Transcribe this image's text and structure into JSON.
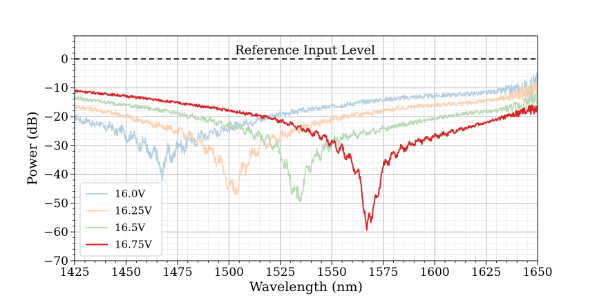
{
  "chart_data": {
    "type": "line",
    "xlabel": "Wavelength (nm)",
    "ylabel": "Power (dB)",
    "xlim": [
      1425,
      1650
    ],
    "ylim": [
      -70,
      8
    ],
    "x_ticks": [
      1425,
      1450,
      1475,
      1500,
      1525,
      1550,
      1575,
      1600,
      1625,
      1650
    ],
    "y_ticks": [
      0,
      -10,
      -20,
      -30,
      -40,
      -50,
      -60,
      -70
    ],
    "grid": "major and minor",
    "legend_position": "lower-left",
    "reference_line": {
      "y": 0,
      "style": "dashed",
      "color": "#000000",
      "label": "Reference Input Level"
    },
    "series": [
      {
        "name": "16.0V",
        "color": "#aecde3",
        "opacity": 0.95,
        "noise": 1.6,
        "ripple_amp": 2.6,
        "ripple_period": 5.5,
        "points": [
          [
            1425,
            -20.5
          ],
          [
            1430,
            -21.5
          ],
          [
            1435,
            -22.5
          ],
          [
            1440,
            -23.5
          ],
          [
            1445,
            -24.5
          ],
          [
            1450,
            -26
          ],
          [
            1455,
            -28
          ],
          [
            1460,
            -31
          ],
          [
            1463,
            -33
          ],
          [
            1466,
            -36
          ],
          [
            1468,
            -38
          ],
          [
            1470,
            -34
          ],
          [
            1475,
            -31
          ],
          [
            1480,
            -29
          ],
          [
            1485,
            -27.5
          ],
          [
            1490,
            -26
          ],
          [
            1500,
            -24
          ],
          [
            1510,
            -22
          ],
          [
            1520,
            -20
          ],
          [
            1530,
            -18.5
          ],
          [
            1540,
            -17.5
          ],
          [
            1550,
            -16.5
          ],
          [
            1560,
            -15.5
          ],
          [
            1570,
            -14.5
          ],
          [
            1580,
            -13.8
          ],
          [
            1590,
            -13.2
          ],
          [
            1600,
            -12.8
          ],
          [
            1610,
            -12.4
          ],
          [
            1620,
            -12
          ],
          [
            1630,
            -11.3
          ],
          [
            1640,
            -10.5
          ],
          [
            1645,
            -10
          ],
          [
            1650,
            -8
          ]
        ]
      },
      {
        "name": "16.25V",
        "color": "#fdd0ac",
        "opacity": 0.95,
        "noise": 1.4,
        "ripple_amp": 2.8,
        "ripple_period": 5.0,
        "points": [
          [
            1425,
            -16.5
          ],
          [
            1435,
            -17.5
          ],
          [
            1445,
            -19
          ],
          [
            1455,
            -21
          ],
          [
            1465,
            -23
          ],
          [
            1475,
            -25
          ],
          [
            1480,
            -26.5
          ],
          [
            1485,
            -28.5
          ],
          [
            1490,
            -31
          ],
          [
            1494,
            -34
          ],
          [
            1497,
            -38
          ],
          [
            1500,
            -43
          ],
          [
            1502,
            -46
          ],
          [
            1505,
            -42
          ],
          [
            1508,
            -37
          ],
          [
            1512,
            -33
          ],
          [
            1516,
            -30
          ],
          [
            1520,
            -28.5
          ],
          [
            1525,
            -27
          ],
          [
            1530,
            -25.5
          ],
          [
            1540,
            -23
          ],
          [
            1550,
            -21
          ],
          [
            1560,
            -19.5
          ],
          [
            1570,
            -18.5
          ],
          [
            1580,
            -17.5
          ],
          [
            1590,
            -16.5
          ],
          [
            1600,
            -16
          ],
          [
            1610,
            -15.5
          ],
          [
            1620,
            -15
          ],
          [
            1630,
            -14
          ],
          [
            1640,
            -12.5
          ],
          [
            1645,
            -11.5
          ],
          [
            1650,
            -9
          ]
        ]
      },
      {
        "name": "16.5V",
        "color": "#b2d8ae",
        "opacity": 0.95,
        "noise": 1.3,
        "ripple_amp": 2.6,
        "ripple_period": 4.6,
        "points": [
          [
            1425,
            -13.5
          ],
          [
            1435,
            -14.5
          ],
          [
            1445,
            -15.5
          ],
          [
            1455,
            -16.5
          ],
          [
            1465,
            -17.5
          ],
          [
            1475,
            -19
          ],
          [
            1485,
            -20.5
          ],
          [
            1495,
            -22
          ],
          [
            1505,
            -24
          ],
          [
            1512,
            -26
          ],
          [
            1518,
            -28
          ],
          [
            1522,
            -30
          ],
          [
            1525,
            -33
          ],
          [
            1528,
            -38
          ],
          [
            1531,
            -44
          ],
          [
            1533,
            -49
          ],
          [
            1535,
            -46
          ],
          [
            1537,
            -41
          ],
          [
            1540,
            -36
          ],
          [
            1545,
            -32
          ],
          [
            1550,
            -29
          ],
          [
            1555,
            -27.5
          ],
          [
            1560,
            -26.5
          ],
          [
            1570,
            -25
          ],
          [
            1580,
            -23.5
          ],
          [
            1590,
            -22
          ],
          [
            1600,
            -20.5
          ],
          [
            1610,
            -19.5
          ],
          [
            1620,
            -18.5
          ],
          [
            1630,
            -18
          ],
          [
            1640,
            -16.5
          ],
          [
            1645,
            -15
          ],
          [
            1650,
            -13
          ]
        ]
      },
      {
        "name": "16.75V",
        "color": "#d62728",
        "opacity": 1.0,
        "noise": 0.8,
        "ripple_amp": 2.4,
        "ripple_period": 4.1,
        "points": [
          [
            1425,
            -11
          ],
          [
            1435,
            -11.8
          ],
          [
            1445,
            -12.5
          ],
          [
            1455,
            -13.3
          ],
          [
            1465,
            -14.2
          ],
          [
            1475,
            -15.2
          ],
          [
            1485,
            -16.2
          ],
          [
            1495,
            -17.3
          ],
          [
            1505,
            -18.5
          ],
          [
            1515,
            -19.8
          ],
          [
            1525,
            -21.5
          ],
          [
            1535,
            -24
          ],
          [
            1545,
            -27
          ],
          [
            1552,
            -30
          ],
          [
            1557,
            -33
          ],
          [
            1561,
            -37
          ],
          [
            1564,
            -43
          ],
          [
            1566,
            -52
          ],
          [
            1567,
            -61
          ],
          [
            1568,
            -55
          ],
          [
            1570,
            -52
          ],
          [
            1572,
            -48
          ],
          [
            1574,
            -40
          ],
          [
            1577,
            -35
          ],
          [
            1580,
            -33
          ],
          [
            1585,
            -31
          ],
          [
            1590,
            -29
          ],
          [
            1595,
            -28
          ],
          [
            1600,
            -27
          ],
          [
            1610,
            -25
          ],
          [
            1620,
            -23
          ],
          [
            1630,
            -21
          ],
          [
            1640,
            -19
          ],
          [
            1645,
            -18
          ],
          [
            1650,
            -17
          ]
        ]
      }
    ]
  }
}
